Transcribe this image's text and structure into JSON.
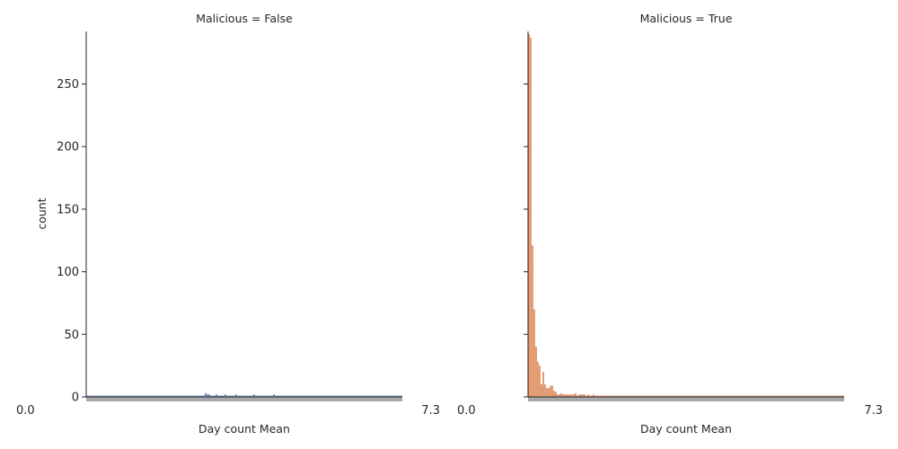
{
  "chart_data": [
    {
      "type": "bar",
      "title": "Malicious = False",
      "xlabel": "Day count Mean",
      "ylabel": "count",
      "ylim": [
        0,
        292
      ],
      "yticks": [
        0,
        50,
        100,
        150,
        200,
        250
      ],
      "x_tick_label_start": "0.0",
      "x_tick_label_end": "7.3",
      "color": "#4c72b0",
      "n_categories": 176,
      "counts": [
        1,
        1,
        1,
        1,
        1,
        1,
        1,
        1,
        1,
        1,
        1,
        1,
        1,
        1,
        1,
        1,
        1,
        1,
        1,
        1,
        1,
        1,
        1,
        1,
        1,
        1,
        1,
        1,
        1,
        1,
        1,
        1,
        1,
        1,
        1,
        1,
        1,
        1,
        1,
        1,
        1,
        1,
        1,
        1,
        1,
        1,
        1,
        1,
        1,
        1,
        1,
        1,
        1,
        1,
        1,
        1,
        1,
        1,
        1,
        1,
        1,
        1,
        1,
        1,
        1,
        1,
        3,
        2,
        2,
        1,
        1,
        1,
        2,
        1,
        1,
        1,
        1,
        2,
        1,
        1,
        1,
        1,
        1,
        2,
        1,
        1,
        1,
        1,
        1,
        1,
        1,
        1,
        1,
        2,
        1,
        1,
        1,
        1,
        1,
        1,
        1,
        1,
        1,
        1,
        2,
        1,
        1,
        1,
        1,
        1,
        1,
        1,
        1,
        1,
        1,
        1,
        1,
        1,
        1,
        1,
        1,
        1,
        1,
        1,
        1,
        1,
        1,
        1,
        1,
        1,
        1,
        1,
        1,
        1,
        1,
        1,
        1,
        1,
        1,
        1,
        1,
        1,
        1,
        1,
        1,
        1,
        1,
        1,
        1,
        1,
        1,
        1,
        1,
        1,
        1,
        1,
        1,
        1,
        1,
        1,
        1,
        1,
        1,
        1,
        1,
        1,
        1,
        1,
        1,
        1,
        1,
        1,
        1,
        1,
        1,
        1
      ]
    },
    {
      "type": "bar",
      "title": "Malicious = True",
      "xlabel": "Day count Mean",
      "ylabel": "",
      "ylim": [
        0,
        292
      ],
      "yticks": [
        0,
        50,
        100,
        150,
        200,
        250
      ],
      "x_tick_label_start": "0.0",
      "x_tick_label_end": "7.3",
      "color": "#dd8452",
      "n_categories": 176,
      "counts": [
        290,
        287,
        121,
        70,
        40,
        28,
        25,
        10,
        20,
        10,
        7,
        7,
        9,
        9,
        5,
        4,
        2,
        2,
        3,
        2,
        2,
        2,
        2,
        2,
        2,
        2,
        3,
        1,
        2,
        2,
        2,
        2,
        1,
        2,
        1,
        1,
        2,
        1,
        1,
        1,
        1,
        1,
        1,
        1,
        1,
        1,
        1,
        1,
        1,
        1,
        1,
        1,
        1,
        1,
        1,
        1,
        1,
        1,
        1,
        1,
        1,
        1,
        1,
        1,
        1,
        1,
        1,
        1,
        1,
        1,
        1,
        1,
        1,
        1,
        1,
        1,
        1,
        1,
        1,
        1,
        1,
        1,
        1,
        1,
        1,
        1,
        1,
        1,
        1,
        1,
        1,
        1,
        1,
        1,
        1,
        1,
        1,
        1,
        1,
        1,
        1,
        1,
        1,
        1,
        1,
        1,
        1,
        1,
        1,
        1,
        1,
        1,
        1,
        1,
        1,
        1,
        1,
        1,
        1,
        1,
        1,
        1,
        1,
        1,
        1,
        1,
        1,
        1,
        1,
        1,
        1,
        1,
        1,
        1,
        1,
        1,
        1,
        1,
        1,
        1,
        1,
        1,
        1,
        1,
        1,
        1,
        1,
        1,
        1,
        1,
        1,
        1,
        1,
        1,
        1,
        1,
        1,
        1,
        1,
        1,
        1,
        1,
        1,
        1,
        1,
        1,
        1,
        1,
        1,
        1,
        1,
        1,
        1,
        1,
        1,
        1
      ]
    }
  ]
}
